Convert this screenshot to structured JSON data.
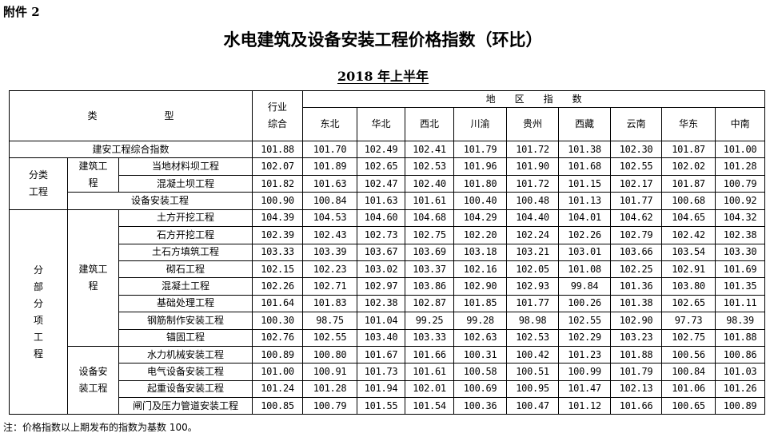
{
  "attachment": "附件 2",
  "title": "水电建筑及设备安装工程价格指数（环比）",
  "subtitle": "2018 年上半年",
  "table": {
    "header": {
      "type": "类　　　　　　　型",
      "industry": "行业\n综合",
      "region_group": "地　　区　　指　　数",
      "regions": [
        "东北",
        "华北",
        "西北",
        "川渝",
        "贵州",
        "西藏",
        "云南",
        "华东",
        "中南"
      ]
    },
    "groups": {
      "classified": "分类\n工程",
      "sub_items": "分\n部\n分\n项\n工\n程",
      "construction": "建筑工\n程",
      "construction2": "建筑工\n程",
      "equipment": "设备安\n装工程"
    },
    "rows": [
      {
        "label": "建安工程综合指数",
        "values": [
          "101.88",
          "101.70",
          "102.49",
          "102.41",
          "101.79",
          "101.72",
          "101.38",
          "102.30",
          "101.87",
          "101.00"
        ]
      },
      {
        "label": "当地材料坝工程",
        "values": [
          "102.07",
          "101.89",
          "102.65",
          "102.53",
          "101.96",
          "101.90",
          "101.68",
          "102.55",
          "102.02",
          "101.28"
        ]
      },
      {
        "label": "混凝土坝工程",
        "values": [
          "101.82",
          "101.63",
          "102.47",
          "102.40",
          "101.80",
          "101.72",
          "101.15",
          "102.17",
          "101.87",
          "100.79"
        ]
      },
      {
        "label": "设备安装工程",
        "values": [
          "100.90",
          "100.84",
          "101.63",
          "101.61",
          "100.40",
          "100.48",
          "101.13",
          "101.77",
          "100.68",
          "100.92"
        ]
      },
      {
        "label": "土方开挖工程",
        "values": [
          "104.39",
          "104.53",
          "104.60",
          "104.68",
          "104.29",
          "104.40",
          "104.01",
          "104.62",
          "104.65",
          "104.32"
        ]
      },
      {
        "label": "石方开挖工程",
        "values": [
          "102.39",
          "102.43",
          "102.73",
          "102.75",
          "102.20",
          "102.24",
          "102.26",
          "102.79",
          "102.42",
          "102.38"
        ]
      },
      {
        "label": "土石方填筑工程",
        "values": [
          "103.33",
          "103.39",
          "103.67",
          "103.69",
          "103.18",
          "103.21",
          "103.01",
          "103.66",
          "103.54",
          "103.30"
        ]
      },
      {
        "label": "砌石工程",
        "values": [
          "102.15",
          "102.23",
          "103.02",
          "103.37",
          "102.16",
          "102.05",
          "101.08",
          "102.25",
          "102.91",
          "101.69"
        ]
      },
      {
        "label": "混凝土工程",
        "values": [
          "102.26",
          "102.71",
          "102.97",
          "103.86",
          "102.90",
          "102.93",
          "99.84",
          "101.36",
          "103.80",
          "101.35"
        ]
      },
      {
        "label": "基础处理工程",
        "values": [
          "101.64",
          "101.83",
          "102.38",
          "102.87",
          "101.85",
          "101.77",
          "100.26",
          "101.38",
          "102.65",
          "101.11"
        ]
      },
      {
        "label": "钢筋制作安装工程",
        "values": [
          "100.30",
          "98.75",
          "101.04",
          "99.25",
          "99.28",
          "98.98",
          "102.55",
          "102.90",
          "97.73",
          "98.39"
        ]
      },
      {
        "label": "锚固工程",
        "values": [
          "102.76",
          "102.55",
          "103.40",
          "103.33",
          "102.63",
          "102.53",
          "102.29",
          "103.23",
          "102.75",
          "101.88"
        ]
      },
      {
        "label": "水力机械安装工程",
        "values": [
          "100.89",
          "100.80",
          "101.67",
          "101.66",
          "100.31",
          "100.42",
          "101.23",
          "101.88",
          "100.56",
          "100.86"
        ]
      },
      {
        "label": "电气设备安装工程",
        "values": [
          "101.00",
          "100.91",
          "101.73",
          "101.61",
          "100.58",
          "100.51",
          "100.99",
          "101.79",
          "100.84",
          "101.03"
        ]
      },
      {
        "label": "起重设备安装工程",
        "values": [
          "101.24",
          "101.28",
          "101.94",
          "102.01",
          "100.69",
          "100.95",
          "101.47",
          "102.13",
          "101.06",
          "101.26"
        ]
      },
      {
        "label": "闸门及压力管道安装工程",
        "values": [
          "100.85",
          "100.79",
          "101.55",
          "101.54",
          "100.36",
          "100.47",
          "101.12",
          "101.66",
          "100.65",
          "100.89"
        ]
      }
    ]
  },
  "note": "注：价格指数以上期发布的指数为基数 100。"
}
